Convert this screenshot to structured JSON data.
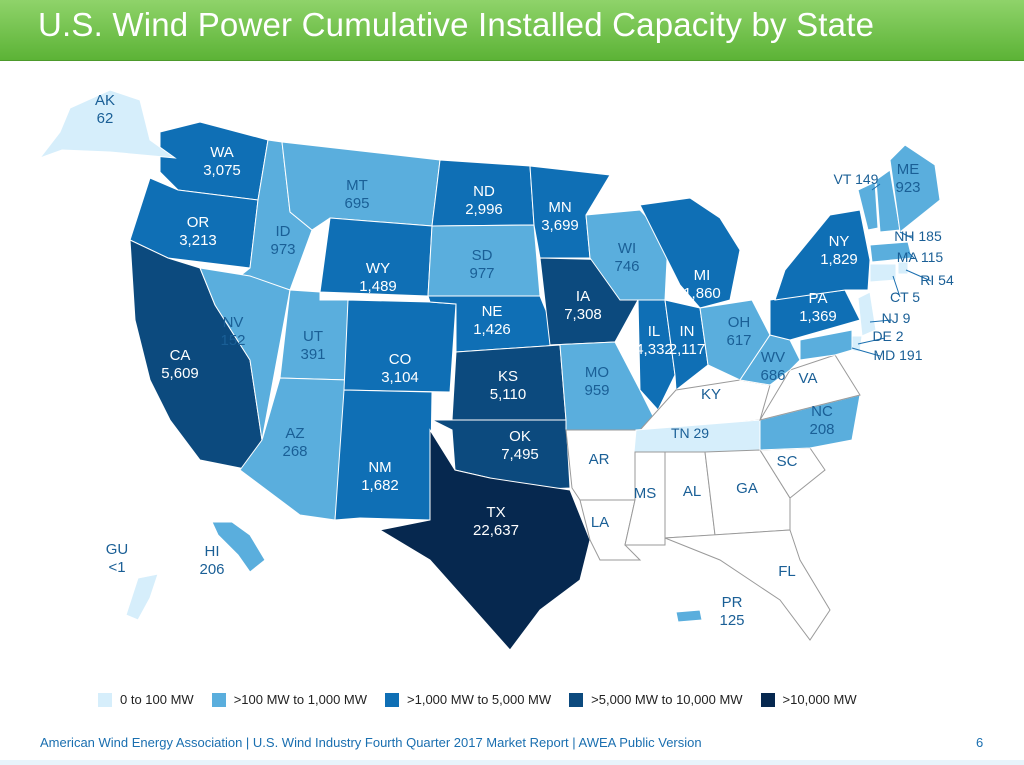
{
  "header": {
    "title": "U.S. Wind Power Cumulative Installed Capacity by State"
  },
  "colors": {
    "c1": "#d6eefb",
    "c2": "#5aaedd",
    "c3": "#0f6fb5",
    "c4": "#0c4a7e",
    "c5": "#06284f",
    "none": "#ffffff",
    "border": "#9fb8c9"
  },
  "legend": [
    {
      "label": "0 to 100 MW",
      "color": "#d6eefb"
    },
    {
      "label": ">100 MW to 1,000 MW",
      "color": "#5aaedd"
    },
    {
      "label": ">1,000 MW to 5,000 MW",
      "color": "#0f6fb5"
    },
    {
      "label": ">5,000 MW to 10,000 MW",
      "color": "#0c4a7e"
    },
    {
      "label": ">10,000 MW",
      "color": "#06284f"
    }
  ],
  "states": [
    {
      "abbr": "WA",
      "value": "3,075",
      "tier": "c3"
    },
    {
      "abbr": "OR",
      "value": "3,213",
      "tier": "c3"
    },
    {
      "abbr": "CA",
      "value": "5,609",
      "tier": "c4"
    },
    {
      "abbr": "ID",
      "value": "973",
      "tier": "c2"
    },
    {
      "abbr": "NV",
      "value": "152",
      "tier": "c2"
    },
    {
      "abbr": "MT",
      "value": "695",
      "tier": "c2"
    },
    {
      "abbr": "WY",
      "value": "1,489",
      "tier": "c3"
    },
    {
      "abbr": "UT",
      "value": "391",
      "tier": "c2"
    },
    {
      "abbr": "AZ",
      "value": "268",
      "tier": "c2"
    },
    {
      "abbr": "CO",
      "value": "3,104",
      "tier": "c3"
    },
    {
      "abbr": "NM",
      "value": "1,682",
      "tier": "c3"
    },
    {
      "abbr": "ND",
      "value": "2,996",
      "tier": "c3"
    },
    {
      "abbr": "SD",
      "value": "977",
      "tier": "c2"
    },
    {
      "abbr": "NE",
      "value": "1,426",
      "tier": "c3"
    },
    {
      "abbr": "KS",
      "value": "5,110",
      "tier": "c4"
    },
    {
      "abbr": "OK",
      "value": "7,495",
      "tier": "c4"
    },
    {
      "abbr": "TX",
      "value": "22,637",
      "tier": "c5"
    },
    {
      "abbr": "MN",
      "value": "3,699",
      "tier": "c3"
    },
    {
      "abbr": "IA",
      "value": "7,308",
      "tier": "c4"
    },
    {
      "abbr": "MO",
      "value": "959",
      "tier": "c2"
    },
    {
      "abbr": "AR",
      "value": "",
      "tier": "none"
    },
    {
      "abbr": "LA",
      "value": "",
      "tier": "none"
    },
    {
      "abbr": "WI",
      "value": "746",
      "tier": "c2"
    },
    {
      "abbr": "IL",
      "value": "4,332",
      "tier": "c3"
    },
    {
      "abbr": "MI",
      "value": "1,860",
      "tier": "c3"
    },
    {
      "abbr": "IN",
      "value": "2,117",
      "tier": "c3"
    },
    {
      "abbr": "OH",
      "value": "617",
      "tier": "c2"
    },
    {
      "abbr": "KY",
      "value": "",
      "tier": "none"
    },
    {
      "abbr": "TN",
      "value": "29",
      "tier": "c1"
    },
    {
      "abbr": "MS",
      "value": "",
      "tier": "none"
    },
    {
      "abbr": "AL",
      "value": "",
      "tier": "none"
    },
    {
      "abbr": "GA",
      "value": "",
      "tier": "none"
    },
    {
      "abbr": "FL",
      "value": "",
      "tier": "none"
    },
    {
      "abbr": "SC",
      "value": "",
      "tier": "none"
    },
    {
      "abbr": "NC",
      "value": "208",
      "tier": "c2"
    },
    {
      "abbr": "VA",
      "value": "",
      "tier": "none"
    },
    {
      "abbr": "WV",
      "value": "686",
      "tier": "c2"
    },
    {
      "abbr": "PA",
      "value": "1,369",
      "tier": "c3"
    },
    {
      "abbr": "NY",
      "value": "1,829",
      "tier": "c3"
    },
    {
      "abbr": "VT",
      "value": "149",
      "tier": "c2"
    },
    {
      "abbr": "NH",
      "value": "185",
      "tier": "c2"
    },
    {
      "abbr": "ME",
      "value": "923",
      "tier": "c2"
    },
    {
      "abbr": "MA",
      "value": "115",
      "tier": "c2"
    },
    {
      "abbr": "RI",
      "value": "54",
      "tier": "c1"
    },
    {
      "abbr": "CT",
      "value": "5",
      "tier": "c1"
    },
    {
      "abbr": "NJ",
      "value": "9",
      "tier": "c1"
    },
    {
      "abbr": "DE",
      "value": "2",
      "tier": "c1"
    },
    {
      "abbr": "MD",
      "value": "191",
      "tier": "c2"
    },
    {
      "abbr": "AK",
      "value": "62",
      "tier": "c1"
    },
    {
      "abbr": "HI",
      "value": "206",
      "tier": "c2"
    },
    {
      "abbr": "GU",
      "value": "<1",
      "tier": "c1"
    },
    {
      "abbr": "PR",
      "value": "125",
      "tier": "c2"
    }
  ],
  "footer": {
    "text": "American Wind Energy Association  |  U.S. Wind Industry Fourth Quarter 2017 Market Report  |  AWEA Public Version",
    "page": "6"
  }
}
